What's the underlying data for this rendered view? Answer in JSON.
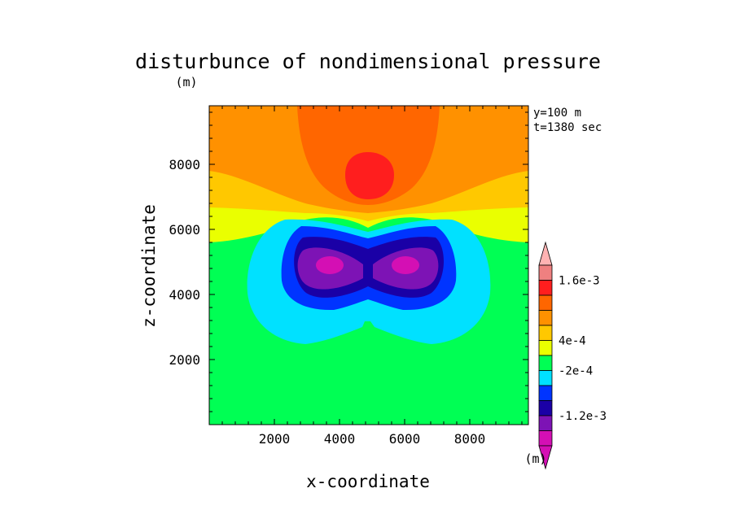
{
  "chart_data": {
    "type": "contour",
    "title": "disturbunce of nondimensional pressure",
    "xlabel": "x-coordinate",
    "ylabel": "z-coordinate",
    "x_unit": "(m)",
    "y_unit": "(m)",
    "colorbar_unit": "(m)",
    "annotations": [
      "y=100 m",
      "t=1380 sec"
    ],
    "xlim": [
      0,
      9800
    ],
    "ylim": [
      0,
      9800
    ],
    "xticks": [
      2000,
      4000,
      6000,
      8000
    ],
    "yticks": [
      2000,
      4000,
      6000,
      8000
    ],
    "colorbar": {
      "colors": [
        "#d40fb4",
        "#7d13b5",
        "#1a00a6",
        "#0034ff",
        "#00e1ff",
        "#00ff54",
        "#eaff00",
        "#ffc800",
        "#ff9100",
        "#ff6600",
        "#ff1e1e",
        "#ef8080"
      ],
      "tick_labels": [
        "-1.2e-3",
        "-2e-4",
        "4e-4",
        "1.6e-3"
      ],
      "extend": "both"
    },
    "field": {
      "background_color": "#00ff54",
      "upper_bands": [
        {
          "color": "#eaff00"
        },
        {
          "color": "#ffc800"
        },
        {
          "color": "#ff9100"
        },
        {
          "color": "#ff6600"
        },
        {
          "color": "#ff1e1e"
        }
      ],
      "low_cells": [
        {
          "x": 4000,
          "z": 5000
        },
        {
          "x": 6000,
          "z": 5000
        }
      ],
      "high_cell": {
        "x": 5000,
        "z": 7800
      }
    }
  }
}
